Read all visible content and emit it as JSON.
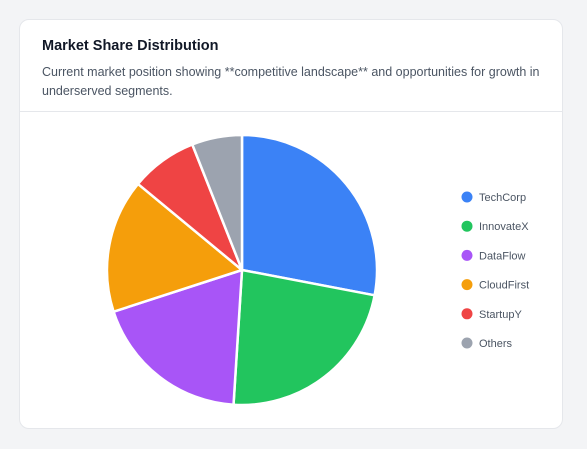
{
  "card": {
    "title": "Market Share Distribution",
    "subtitle": "Current market position showing **competitive landscape** and opportunities for growth in underserved segments."
  },
  "chart_data": {
    "type": "pie",
    "categories": [
      "TechCorp",
      "InnovateX",
      "DataFlow",
      "CloudFirst",
      "StartupY",
      "Others"
    ],
    "values": [
      28,
      23,
      19,
      16,
      8,
      6
    ],
    "colors": [
      "#3b82f6",
      "#22c55e",
      "#a855f7",
      "#f59e0b",
      "#ef4444",
      "#9ca3af"
    ],
    "legend": "right"
  }
}
